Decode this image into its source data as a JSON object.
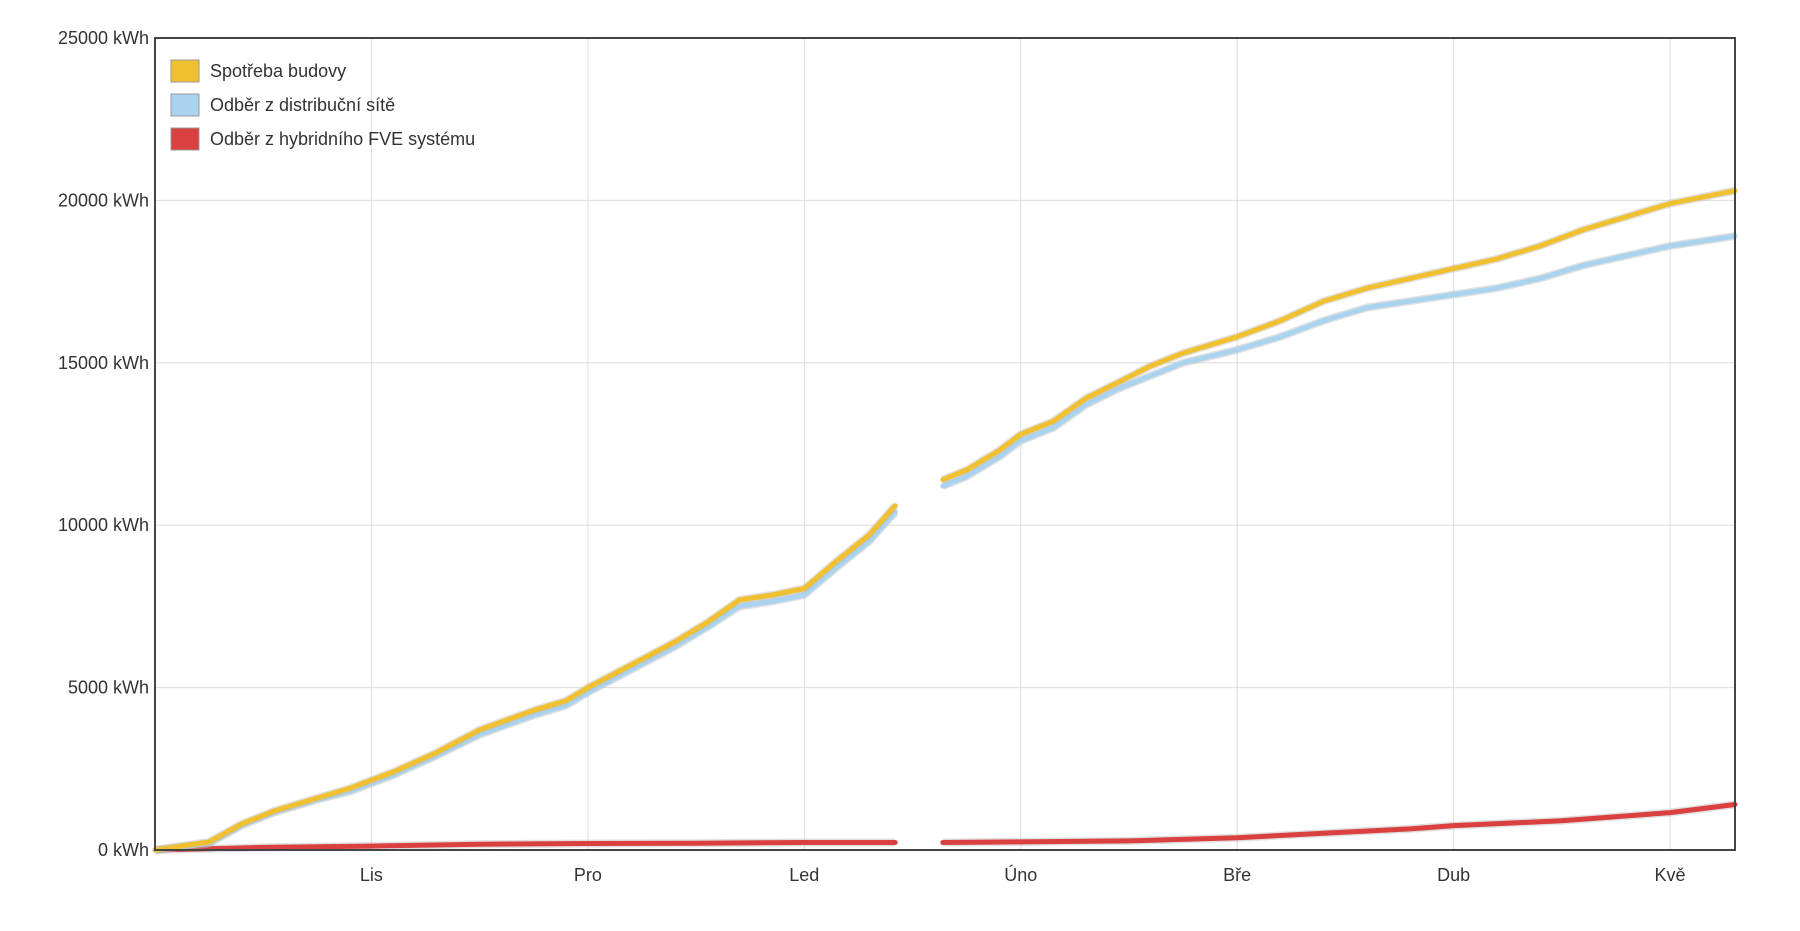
{
  "chart_data": {
    "type": "line",
    "title": "",
    "xlabel": "",
    "ylabel": "",
    "y_unit": "kWh",
    "ylim": [
      0,
      25000
    ],
    "y_ticks": [
      "0 kWh",
      "5000 kWh",
      "10000 kWh",
      "15000 kWh",
      "20000 kWh",
      "25000 kWh"
    ],
    "y_tick_values": [
      0,
      5000,
      10000,
      15000,
      20000,
      25000
    ],
    "x_ticks": [
      "Lis",
      "Pro",
      "Led",
      "Úno",
      "Bře",
      "Dub",
      "Kvě"
    ],
    "x_tick_positions": [
      1.0,
      2.0,
      3.0,
      4.0,
      5.0,
      6.0,
      7.0
    ],
    "xlim": [
      0.0,
      7.3
    ],
    "grid": true,
    "legend_position": "top-left",
    "gap": [
      4.5,
      5.0
    ],
    "series": [
      {
        "name": "Spotřeba budovy",
        "color": "#f0c030",
        "points": [
          [
            0.0,
            0
          ],
          [
            0.25,
            250
          ],
          [
            0.4,
            800
          ],
          [
            0.55,
            1200
          ],
          [
            0.75,
            1600
          ],
          [
            0.9,
            1900
          ],
          [
            1.1,
            2400
          ],
          [
            1.3,
            3000
          ],
          [
            1.5,
            3700
          ],
          [
            1.75,
            4300
          ],
          [
            1.9,
            4600
          ],
          [
            2.0,
            5000
          ],
          [
            2.2,
            5700
          ],
          [
            2.4,
            6400
          ],
          [
            2.55,
            7000
          ],
          [
            2.7,
            7700
          ],
          [
            2.85,
            7850
          ],
          [
            3.0,
            8050
          ],
          [
            3.15,
            8900
          ],
          [
            3.3,
            9700
          ],
          [
            3.42,
            10600
          ],
          null,
          [
            3.64,
            11400
          ],
          [
            3.75,
            11700
          ],
          [
            3.9,
            12300
          ],
          [
            4.0,
            12800
          ],
          [
            4.15,
            13200
          ],
          [
            4.3,
            13900
          ],
          [
            4.45,
            14400
          ],
          [
            4.6,
            14900
          ],
          [
            4.75,
            15300
          ],
          [
            5.0,
            15800
          ],
          [
            5.2,
            16300
          ],
          [
            5.4,
            16900
          ],
          [
            5.6,
            17300
          ],
          [
            5.8,
            17600
          ],
          [
            6.0,
            17900
          ],
          [
            6.2,
            18200
          ],
          [
            6.4,
            18600
          ],
          [
            6.6,
            19100
          ],
          [
            6.8,
            19500
          ],
          [
            7.0,
            19900
          ],
          [
            7.3,
            20300
          ]
        ]
      },
      {
        "name": "Odběr z distribuční sítě",
        "color": "#a9d3ee",
        "points": [
          [
            0.0,
            0
          ],
          [
            0.25,
            200
          ],
          [
            0.4,
            750
          ],
          [
            0.55,
            1150
          ],
          [
            0.75,
            1550
          ],
          [
            0.9,
            1800
          ],
          [
            1.1,
            2300
          ],
          [
            1.3,
            2900
          ],
          [
            1.5,
            3550
          ],
          [
            1.75,
            4150
          ],
          [
            1.9,
            4450
          ],
          [
            2.0,
            4850
          ],
          [
            2.2,
            5550
          ],
          [
            2.4,
            6250
          ],
          [
            2.55,
            6850
          ],
          [
            2.7,
            7500
          ],
          [
            2.85,
            7650
          ],
          [
            3.0,
            7850
          ],
          [
            3.15,
            8700
          ],
          [
            3.3,
            9500
          ],
          [
            3.42,
            10400
          ],
          null,
          [
            3.64,
            11200
          ],
          [
            3.75,
            11500
          ],
          [
            3.9,
            12100
          ],
          [
            4.0,
            12600
          ],
          [
            4.15,
            13000
          ],
          [
            4.3,
            13700
          ],
          [
            4.45,
            14200
          ],
          [
            4.6,
            14600
          ],
          [
            4.75,
            15000
          ],
          [
            5.0,
            15400
          ],
          [
            5.2,
            15800
          ],
          [
            5.4,
            16300
          ],
          [
            5.6,
            16700
          ],
          [
            5.8,
            16900
          ],
          [
            6.0,
            17100
          ],
          [
            6.2,
            17300
          ],
          [
            6.4,
            17600
          ],
          [
            6.6,
            18000
          ],
          [
            6.8,
            18300
          ],
          [
            7.0,
            18600
          ],
          [
            7.3,
            18900
          ]
        ]
      },
      {
        "name": "Odběr z hybridního FVE systému",
        "color": "#d9403f",
        "points": [
          [
            0.0,
            0
          ],
          [
            0.5,
            80
          ],
          [
            1.0,
            120
          ],
          [
            1.5,
            180
          ],
          [
            2.0,
            200
          ],
          [
            2.5,
            210
          ],
          [
            3.0,
            230
          ],
          [
            3.42,
            230
          ],
          null,
          [
            3.64,
            230
          ],
          [
            4.0,
            250
          ],
          [
            4.5,
            280
          ],
          [
            5.0,
            380
          ],
          [
            5.5,
            550
          ],
          [
            5.8,
            650
          ],
          [
            6.0,
            750
          ],
          [
            6.5,
            900
          ],
          [
            7.0,
            1150
          ],
          [
            7.3,
            1400
          ]
        ]
      }
    ]
  }
}
